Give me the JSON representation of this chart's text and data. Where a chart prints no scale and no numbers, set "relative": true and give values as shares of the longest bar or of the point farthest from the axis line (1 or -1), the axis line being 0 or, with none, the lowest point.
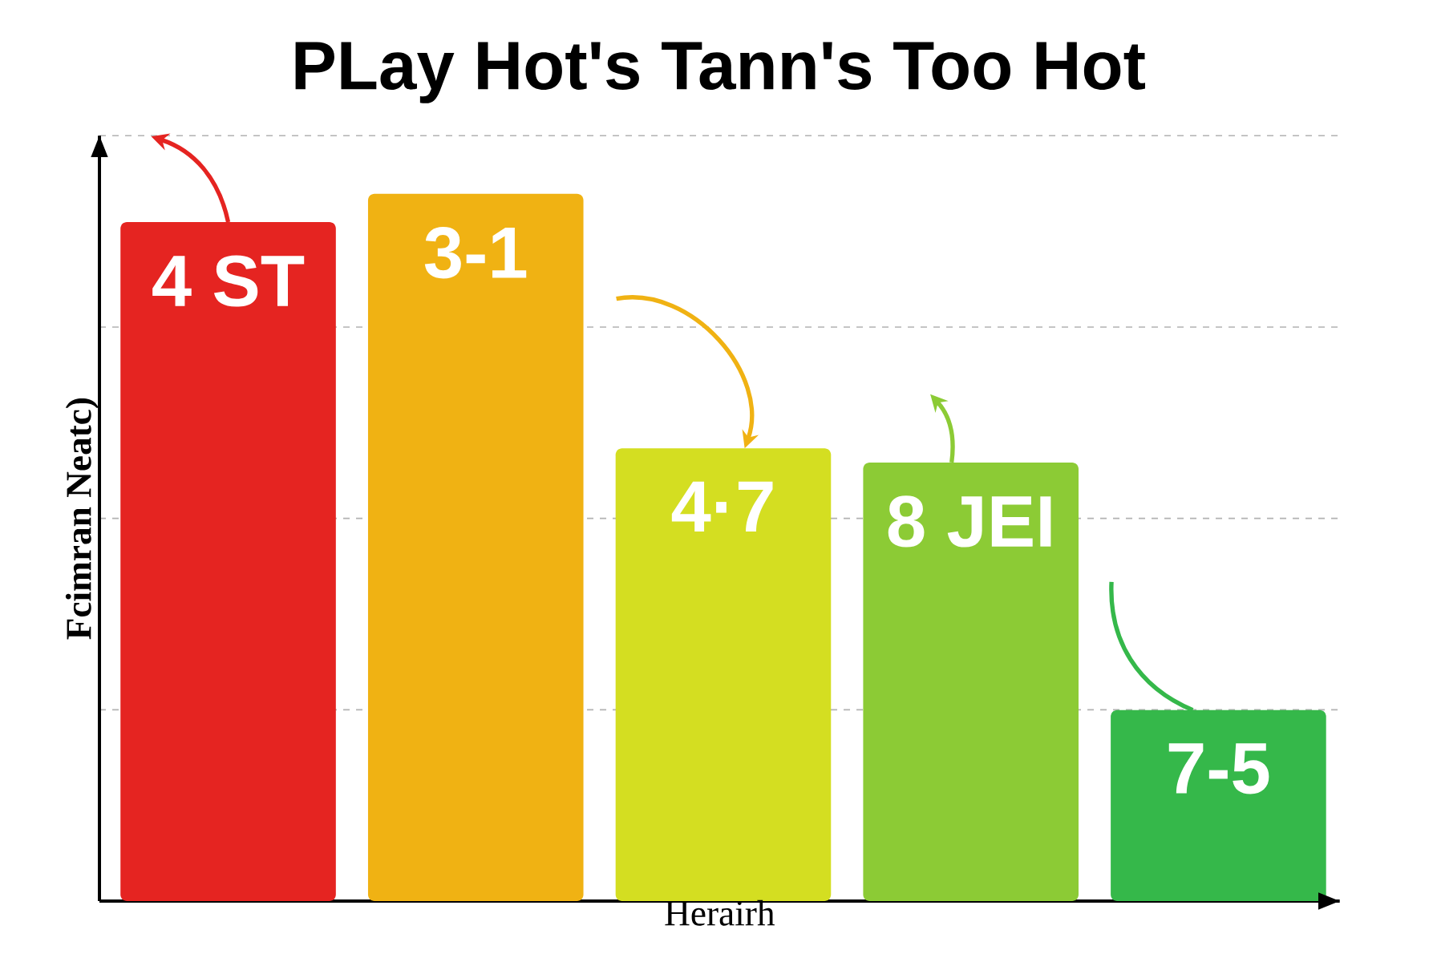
{
  "chart_data": {
    "type": "bar",
    "title": "PLay Hot's Tann's Too Hot",
    "xlabel": "Herairh",
    "ylabel": "Fcimran Neatc)",
    "categories": [
      null,
      null,
      null,
      null,
      null
    ],
    "values": [
      0.96,
      1,
      0.64,
      0.62,
      0.27
    ],
    "colors": [
      "#e52421",
      "#f0b213",
      "#d4de21",
      "#8ccb35",
      "#35b84a"
    ],
    "annotations": [
      "4 ST",
      "3-1",
      "4·7",
      "8 JEI",
      "7-5"
    ],
    "relative": true,
    "grid": "y"
  }
}
